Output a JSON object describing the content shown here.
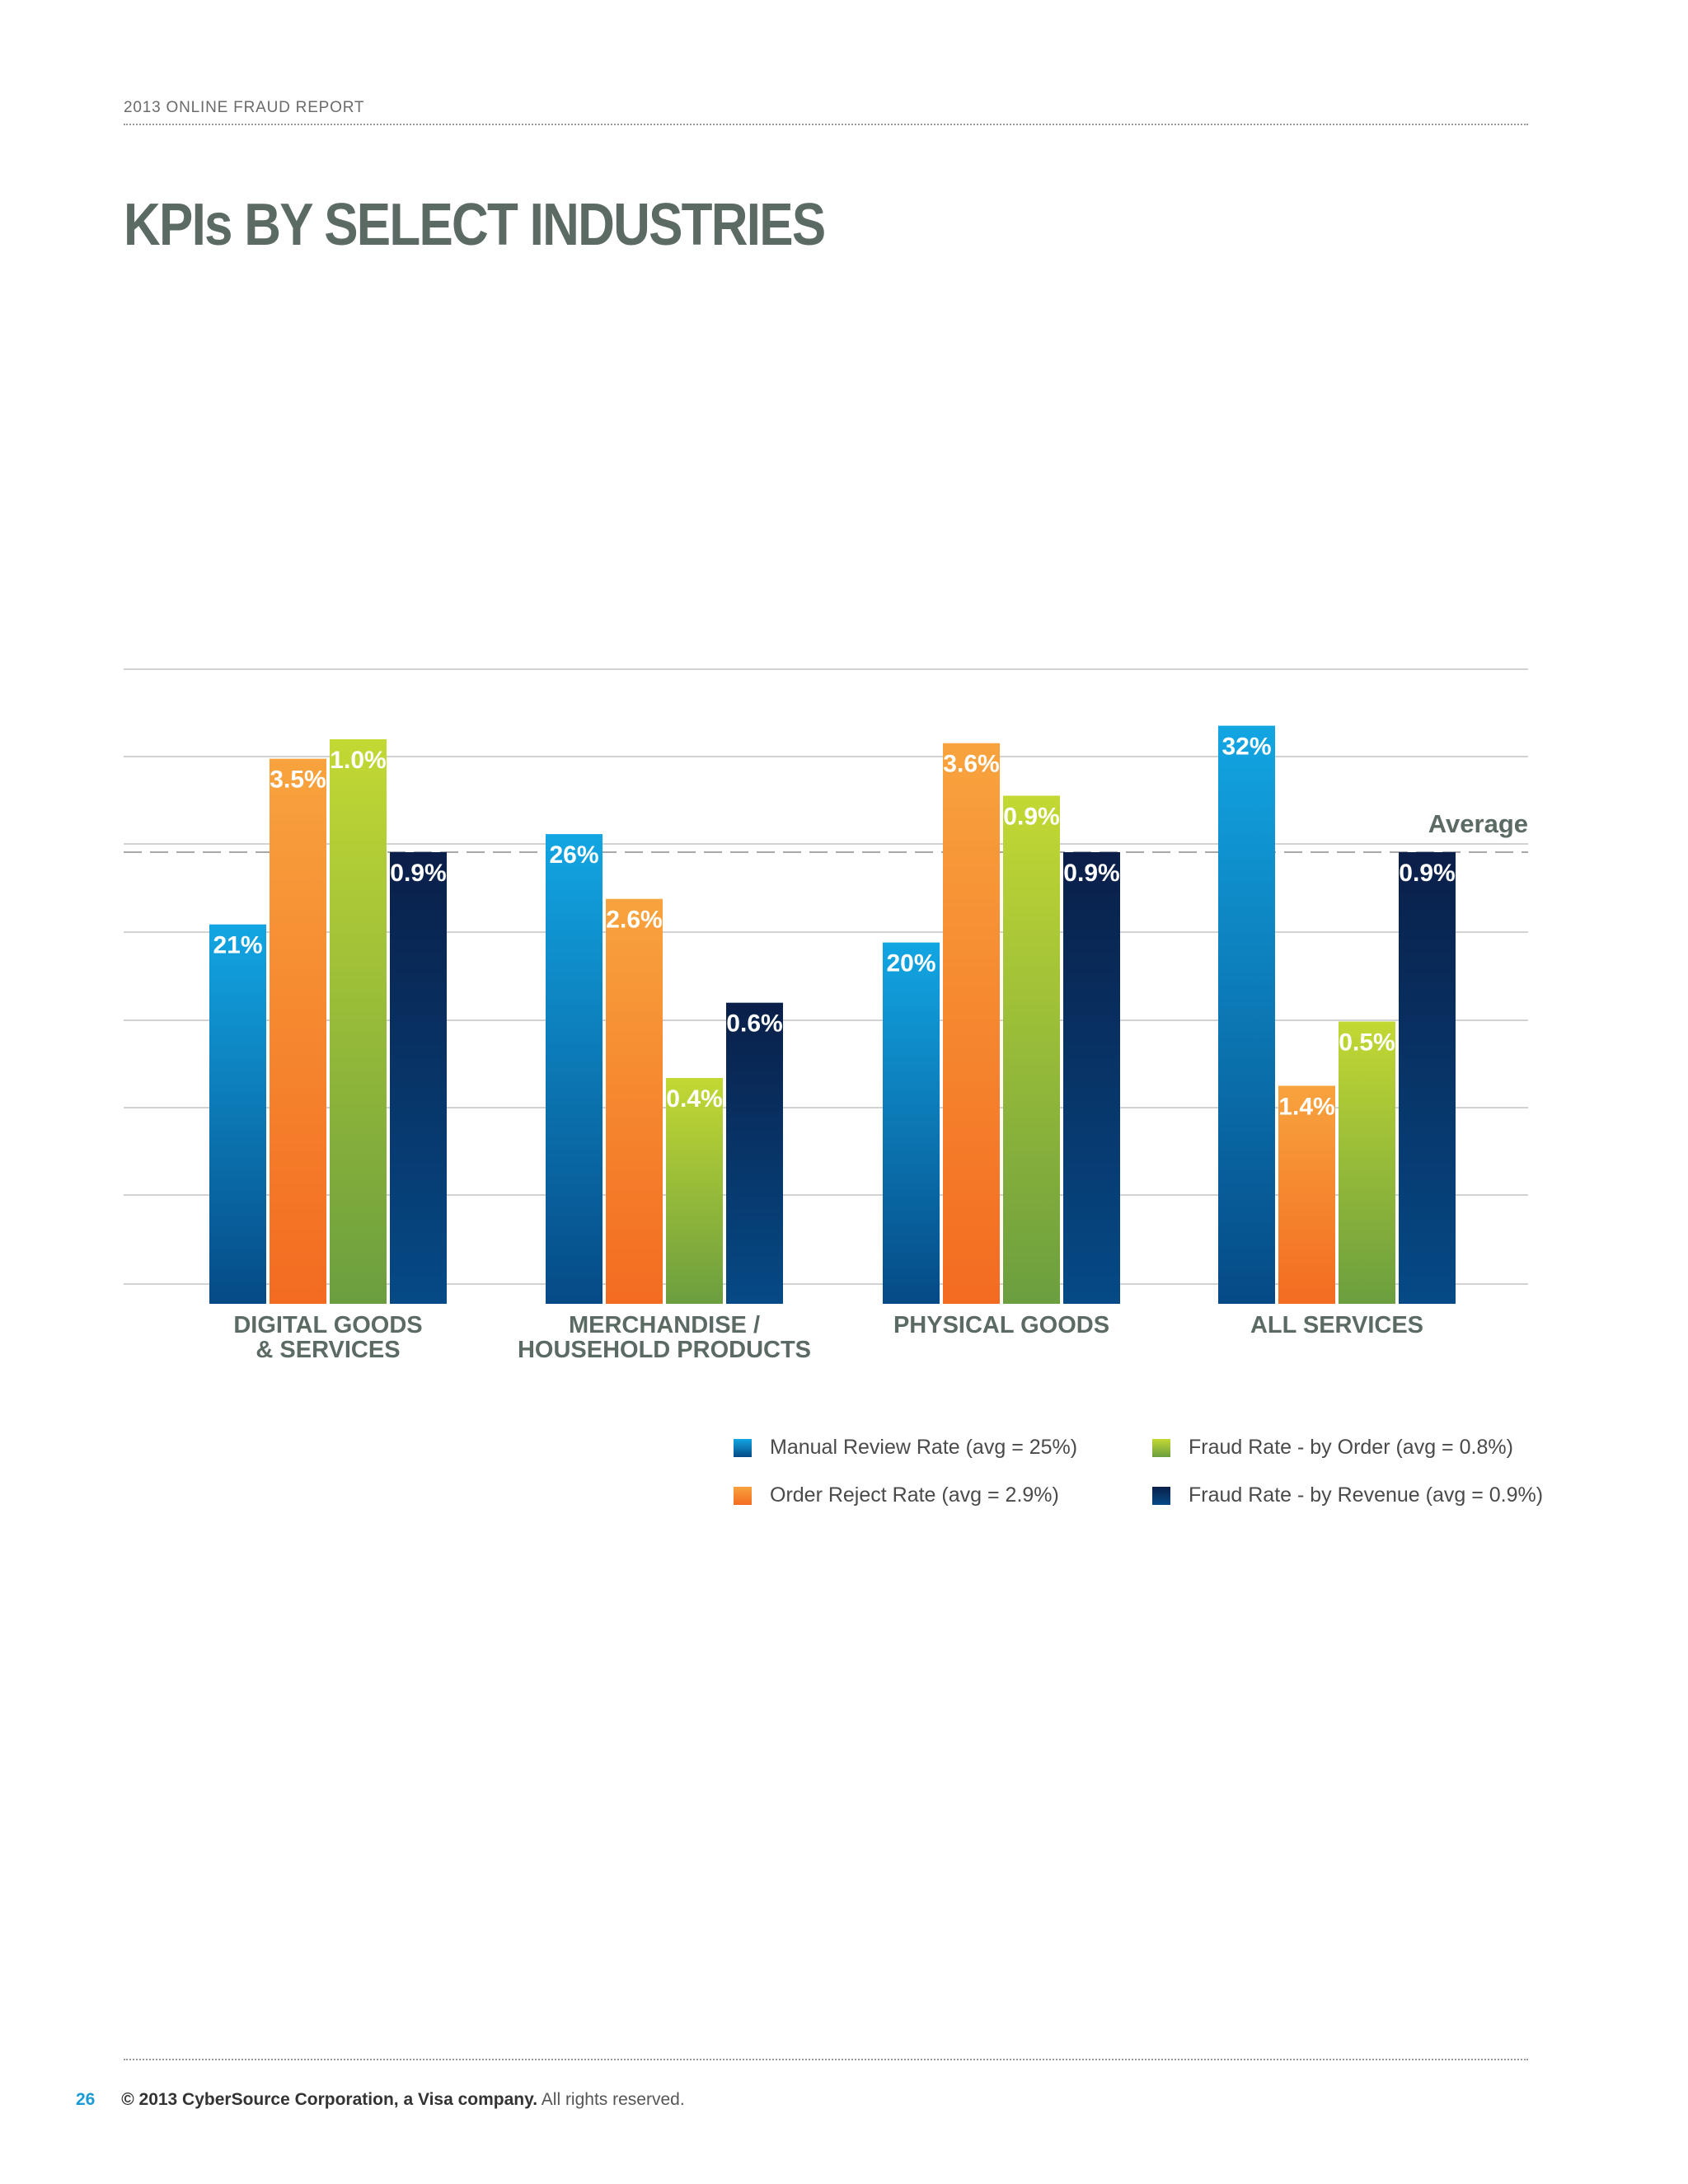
{
  "header": {
    "report_title": "2013 ONLINE FRAUD REPORT"
  },
  "page": {
    "title": "KPIs BY SELECT INDUSTRIES"
  },
  "chart_data": {
    "type": "bar",
    "categories": [
      [
        "DIGITAL GOODS",
        "& SERVICES"
      ],
      [
        "MERCHANDISE /",
        "HOUSEHOLD PRODUCTS"
      ],
      [
        "PHYSICAL GOODS"
      ],
      [
        "ALL SERVICES"
      ]
    ],
    "average_label": "Average",
    "series": [
      {
        "name": "Manual Review Rate (avg = 25%)",
        "values": [
          21,
          26,
          20,
          32
        ],
        "labels": [
          "21%",
          "26%",
          "20%",
          "32%"
        ],
        "average": 25,
        "color_top": "#12a6e3",
        "color_bottom": "#054a86"
      },
      {
        "name": "Order Reject Rate (avg = 2.9%)",
        "values": [
          3.5,
          2.6,
          3.6,
          1.4
        ],
        "labels": [
          "3.5%",
          "2.6%",
          "3.6%",
          "1.4%"
        ],
        "average": 2.9,
        "color_top": "#f8a33e",
        "color_bottom": "#f36b21"
      },
      {
        "name": "Fraud Rate - by Order (avg = 0.8%)",
        "values": [
          1.0,
          0.4,
          0.9,
          0.5
        ],
        "labels": [
          "1.0%",
          "0.4%",
          "0.9%",
          "0.5%"
        ],
        "average": 0.8,
        "color_top": "#c3d833",
        "color_bottom": "#6b9e3f"
      },
      {
        "name": "Fraud Rate - by Revenue (avg = 0.9%)",
        "values": [
          0.9,
          0.6,
          0.9,
          0.9
        ],
        "labels": [
          "0.9%",
          "0.6%",
          "0.9%",
          "0.9%"
        ],
        "average": 0.9,
        "color_top": "#0a1f49",
        "color_bottom": "#054a86"
      }
    ]
  },
  "footer": {
    "page_number": "26",
    "company": "© 2013 CyberSource Corporation, a Visa company.",
    "rights": "All rights reserved."
  }
}
